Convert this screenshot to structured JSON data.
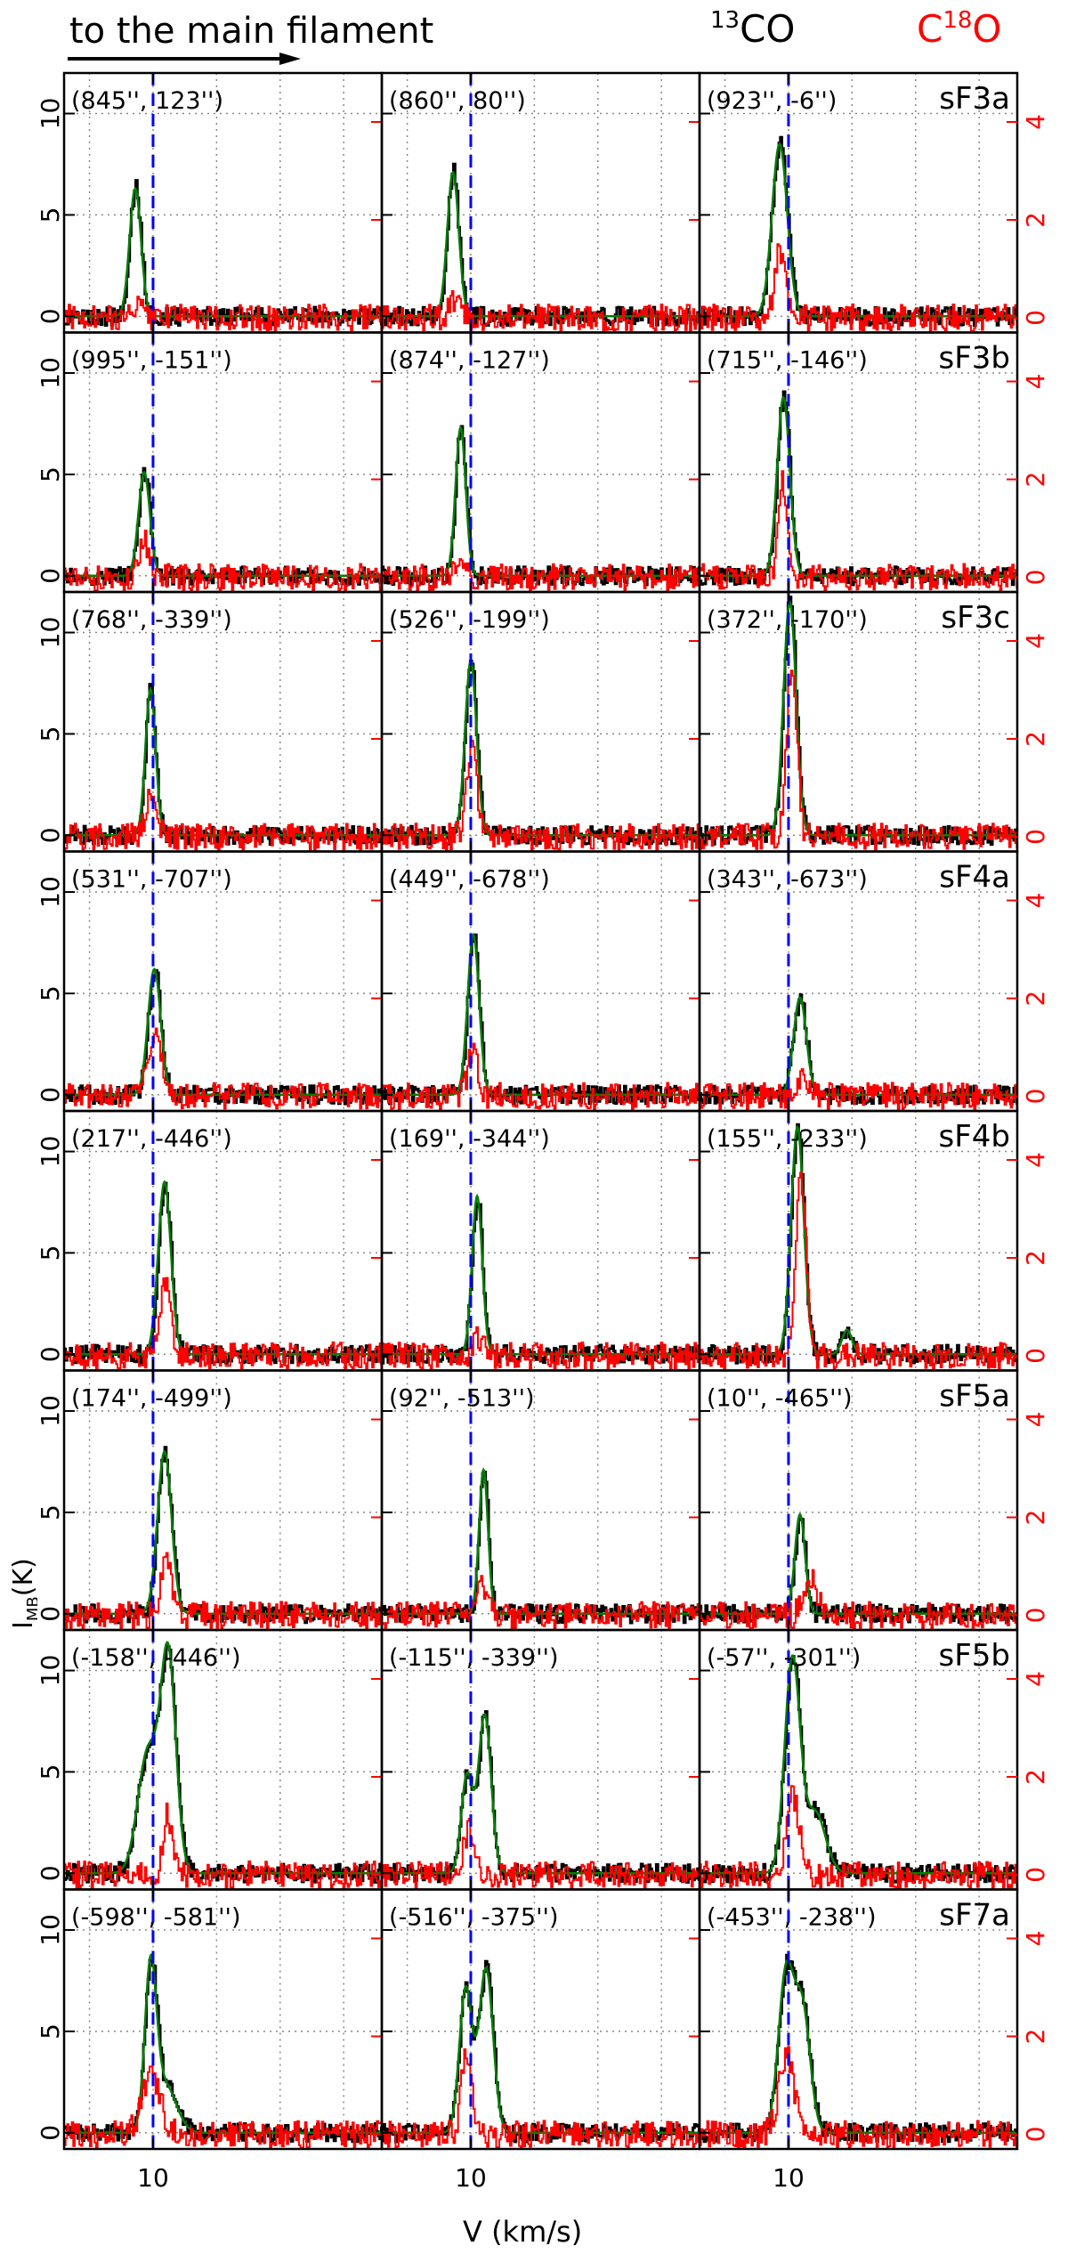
{
  "header": {
    "arrow_text": "to the main filament",
    "co13_sup": "13",
    "co13_base": "CO",
    "c18o_pre": "C",
    "c18o_sup": "18",
    "c18o_post": "O",
    "c18o_color": "#ff0000"
  },
  "axes": {
    "xlabel": "V (km/s)",
    "ylabel_main": "I",
    "ylabel_sub": "MB",
    "ylabel_unit": "(K)",
    "left_ticks": [
      0,
      5,
      10
    ],
    "right_ticks": [
      0,
      2,
      4
    ],
    "x_tick_label": "10"
  },
  "chart_data": {
    "type": "line",
    "layout": "8 rows x 3 columns of spectra",
    "x_axis": {
      "label": "V (km/s)",
      "range": [
        3,
        28
      ],
      "ticks": [
        10
      ],
      "minor_grid": [
        5,
        10,
        15,
        20,
        25
      ]
    },
    "y_left": {
      "label": "I_MB (K)",
      "range": [
        -0.8,
        12
      ],
      "ticks": [
        0,
        5,
        10
      ],
      "series": "13CO"
    },
    "y_right": {
      "range": [
        -0.3,
        5
      ],
      "ticks": [
        0,
        2,
        4
      ],
      "series": "C18O"
    },
    "grid": true,
    "reference_velocity": 10,
    "colors": {
      "co13": "#000000",
      "fit": "#008000",
      "c18o": "#ff0000",
      "ref": "#0000ff",
      "grid": "#888888"
    },
    "rows": [
      {
        "label": "sF3a",
        "panels": [
          {
            "pos": "(845'', 123'')",
            "co13": [
              {
                "v": 8.6,
                "a": 6.3,
                "w": 0.45
              }
            ],
            "c18o": [
              {
                "v": 8.7,
                "a": 0.3,
                "w": 0.4
              }
            ]
          },
          {
            "pos": "(860'', 80'')",
            "co13": [
              {
                "v": 8.6,
                "a": 7.1,
                "w": 0.45
              }
            ],
            "c18o": [
              {
                "v": 8.7,
                "a": 0.3,
                "w": 0.4
              }
            ]
          },
          {
            "pos": "(923'', -6'')",
            "co13": [
              {
                "v": 9.3,
                "a": 8.5,
                "w": 0.6
              }
            ],
            "c18o": [
              {
                "v": 9.3,
                "a": 1.4,
                "w": 0.4
              }
            ]
          }
        ]
      },
      {
        "label": "sF3b",
        "panels": [
          {
            "pos": "(995'', -151'')",
            "co13": [
              {
                "v": 9.3,
                "a": 5.1,
                "w": 0.45
              }
            ],
            "c18o": [
              {
                "v": 9.3,
                "a": 0.7,
                "w": 0.4
              }
            ]
          },
          {
            "pos": "(874'', -127'')",
            "co13": [
              {
                "v": 9.2,
                "a": 7.3,
                "w": 0.4
              }
            ],
            "c18o": [
              {
                "v": 9.2,
                "a": 0.4,
                "w": 0.4
              }
            ]
          },
          {
            "pos": "(715'', -146'')",
            "co13": [
              {
                "v": 9.6,
                "a": 8.8,
                "w": 0.5
              }
            ],
            "c18o": [
              {
                "v": 9.5,
                "a": 2.0,
                "w": 0.35
              }
            ]
          }
        ]
      },
      {
        "label": "sF3c",
        "panels": [
          {
            "pos": "(768'', -339'')",
            "co13": [
              {
                "v": 9.8,
                "a": 7.2,
                "w": 0.4
              }
            ],
            "c18o": [
              {
                "v": 9.8,
                "a": 0.8,
                "w": 0.4
              }
            ]
          },
          {
            "pos": "(526'', -199'')",
            "co13": [
              {
                "v": 10.0,
                "a": 8.6,
                "w": 0.45
              }
            ],
            "c18o": [
              {
                "v": 10.0,
                "a": 1.8,
                "w": 0.4
              }
            ]
          },
          {
            "pos": "(372'', -170'')",
            "co13": [
              {
                "v": 10.1,
                "a": 11.5,
                "w": 0.5
              }
            ],
            "c18o": [
              {
                "v": 10.2,
                "a": 3.5,
                "w": 0.4
              }
            ]
          }
        ]
      },
      {
        "label": "sF4a",
        "panels": [
          {
            "pos": "(531'', -707'')",
            "co13": [
              {
                "v": 10.1,
                "a": 6.2,
                "w": 0.5
              }
            ],
            "c18o": [
              {
                "v": 10.1,
                "a": 1.4,
                "w": 0.5
              }
            ]
          },
          {
            "pos": "(449'', -678'')",
            "co13": [
              {
                "v": 10.2,
                "a": 7.9,
                "w": 0.45
              }
            ],
            "c18o": [
              {
                "v": 10.1,
                "a": 0.9,
                "w": 0.4
              }
            ]
          },
          {
            "pos": "(343'', -673'')",
            "co13": [
              {
                "v": 10.9,
                "a": 4.8,
                "w": 0.5
              }
            ],
            "c18o": [
              {
                "v": 10.9,
                "a": 0.3,
                "w": 0.4
              }
            ]
          }
        ]
      },
      {
        "label": "sF4b",
        "panels": [
          {
            "pos": "(217'', -446'')",
            "co13": [
              {
                "v": 10.9,
                "a": 8.5,
                "w": 0.5
              }
            ],
            "c18o": [
              {
                "v": 10.9,
                "a": 1.6,
                "w": 0.4
              }
            ]
          },
          {
            "pos": "(169'', -344'')",
            "co13": [
              {
                "v": 10.5,
                "a": 7.8,
                "w": 0.4
              }
            ],
            "c18o": [
              {
                "v": 10.5,
                "a": 0.4,
                "w": 0.4
              }
            ]
          },
          {
            "pos": "(155'', -233'')",
            "co13": [
              {
                "v": 10.7,
                "a": 11.2,
                "w": 0.5
              },
              {
                "v": 14.6,
                "a": 1.2,
                "w": 0.4
              }
            ],
            "c18o": [
              {
                "v": 10.9,
                "a": 3.7,
                "w": 0.4
              }
            ]
          }
        ]
      },
      {
        "label": "sF5a",
        "panels": [
          {
            "pos": "(174'', -499'')",
            "co13": [
              {
                "v": 10.9,
                "a": 8.0,
                "w": 0.55
              }
            ],
            "c18o": [
              {
                "v": 11.0,
                "a": 1.1,
                "w": 0.4
              }
            ]
          },
          {
            "pos": "(92'', -513'')",
            "co13": [
              {
                "v": 11.0,
                "a": 7.1,
                "w": 0.35
              }
            ],
            "c18o": [
              {
                "v": 10.9,
                "a": 0.6,
                "w": 0.4
              }
            ]
          },
          {
            "pos": "(10'', -465'')",
            "co13": [
              {
                "v": 10.9,
                "a": 4.9,
                "w": 0.4
              }
            ],
            "c18o": [
              {
                "v": 11.7,
                "a": 0.8,
                "w": 0.5
              }
            ]
          }
        ]
      },
      {
        "label": "sF5b",
        "panels": [
          {
            "pos": "(-158'', -446'')",
            "co13": [
              {
                "v": 9.6,
                "a": 6.0,
                "w": 0.8
              },
              {
                "v": 11.2,
                "a": 10.5,
                "w": 0.6
              }
            ],
            "c18o": [
              {
                "v": 11.1,
                "a": 1.2,
                "w": 0.35
              }
            ]
          },
          {
            "pos": "(-115'', -339'')",
            "co13": [
              {
                "v": 9.7,
                "a": 4.8,
                "w": 0.45
              },
              {
                "v": 11.1,
                "a": 7.8,
                "w": 0.5
              }
            ],
            "c18o": [
              {
                "v": 9.8,
                "a": 0.9,
                "w": 0.4
              }
            ]
          },
          {
            "pos": "(-57'', -301'')",
            "co13": [
              {
                "v": 10.3,
                "a": 10.5,
                "w": 0.6
              },
              {
                "v": 12.1,
                "a": 3.0,
                "w": 0.8
              }
            ],
            "c18o": [
              {
                "v": 10.3,
                "a": 1.6,
                "w": 0.5
              }
            ]
          }
        ]
      },
      {
        "label": "sF7a",
        "panels": [
          {
            "pos": "(-598'', -581'')",
            "co13": [
              {
                "v": 9.8,
                "a": 7.6,
                "w": 0.45
              },
              {
                "v": 10.9,
                "a": 2.4,
                "w": 0.9
              }
            ],
            "c18o": [
              {
                "v": 9.8,
                "a": 1.2,
                "w": 0.7
              }
            ]
          },
          {
            "pos": "(-516'', -375'')",
            "co13": [
              {
                "v": 9.6,
                "a": 7.1,
                "w": 0.5
              },
              {
                "v": 11.2,
                "a": 8.1,
                "w": 0.55
              }
            ],
            "c18o": [
              {
                "v": 9.6,
                "a": 1.6,
                "w": 0.4
              }
            ]
          },
          {
            "pos": "(-453'', -238'')",
            "co13": [
              {
                "v": 9.8,
                "a": 7.8,
                "w": 0.6
              },
              {
                "v": 11.1,
                "a": 6.0,
                "w": 0.6
              }
            ],
            "c18o": [
              {
                "v": 9.8,
                "a": 1.6,
                "w": 0.6
              }
            ]
          }
        ]
      }
    ]
  }
}
